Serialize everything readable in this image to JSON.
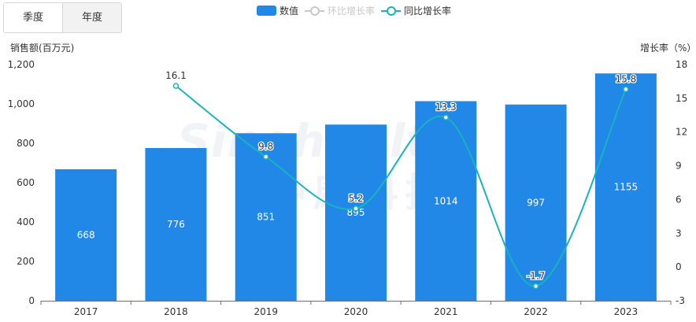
{
  "tabs": [
    {
      "label": "季度",
      "active": false
    },
    {
      "label": "年度",
      "active": true
    }
  ],
  "legend": {
    "bar": {
      "label": "数值",
      "color": "#2288e8"
    },
    "qoq": {
      "label": "环比增长率",
      "color": "#c8c8c8",
      "enabled": false
    },
    "yoy": {
      "label": "同比增长率",
      "color": "#19b3bd",
      "enabled": true
    }
  },
  "left_axis_title": "销售额(百万元)",
  "right_axis_title": "增长率（%）",
  "watermark": {
    "line1": "Sinohealth",
    "line2": "中康科技"
  },
  "chart_data": {
    "type": "bar",
    "categories": [
      "2017",
      "2018",
      "2019",
      "2020",
      "2021",
      "2022",
      "2023"
    ],
    "series": [
      {
        "name": "数值",
        "type": "bar",
        "axis": "left",
        "values": [
          668,
          776,
          851,
          895,
          1014,
          997,
          1155
        ]
      },
      {
        "name": "同比增长率",
        "type": "line",
        "axis": "right",
        "values": [
          null,
          16.1,
          9.8,
          5.2,
          13.3,
          -1.7,
          15.8
        ]
      }
    ],
    "y_left": {
      "label": "销售额(百万元)",
      "ylim": [
        0,
        1200
      ],
      "ticks": [
        "0",
        "200",
        "400",
        "600",
        "800",
        "1,000",
        "1,200"
      ]
    },
    "y_right": {
      "label": "增长率（%）",
      "ylim": [
        -3,
        18
      ],
      "ticks": [
        "-3",
        "0",
        "3",
        "6",
        "9",
        "12",
        "15",
        "18"
      ]
    },
    "grid": false
  }
}
